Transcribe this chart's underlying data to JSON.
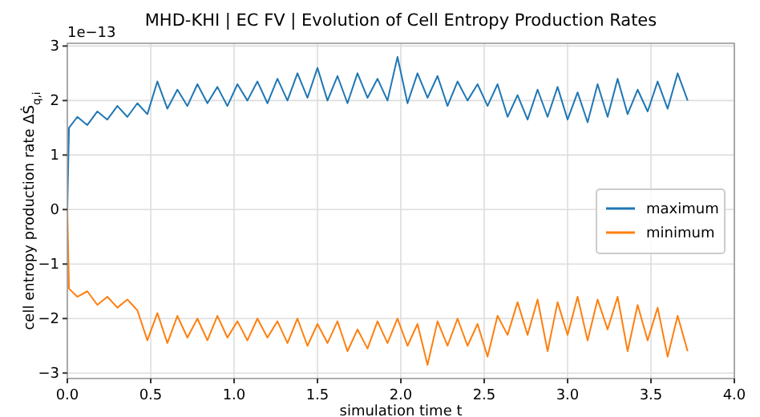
{
  "chart_data": {
    "type": "line",
    "title": "MHD-KHI | EC FV | Evolution of Cell Entropy Production Rates",
    "xlabel": "simulation time t",
    "ylabel": "cell entropy production rate ΔṠ$_{q,i}$",
    "annotations": [
      "1e−13"
    ],
    "x": [
      0,
      0.01,
      0.06,
      0.12,
      0.18,
      0.24,
      0.3,
      0.36,
      0.42,
      0.48,
      0.54,
      0.6,
      0.66,
      0.72,
      0.78,
      0.84,
      0.9,
      0.96,
      1.02,
      1.08,
      1.14,
      1.2,
      1.26,
      1.32,
      1.38,
      1.44,
      1.5,
      1.56,
      1.62,
      1.68,
      1.74,
      1.8,
      1.86,
      1.92,
      1.98,
      2.04,
      2.1,
      2.16,
      2.22,
      2.28,
      2.34,
      2.4,
      2.46,
      2.52,
      2.58,
      2.64,
      2.7,
      2.76,
      2.82,
      2.88,
      2.94,
      3.0,
      3.06,
      3.12,
      3.18,
      3.24,
      3.3,
      3.36,
      3.42,
      3.48,
      3.54,
      3.6,
      3.66,
      3.72
    ],
    "series": [
      {
        "name": "maximum",
        "color": "#1f77b4",
        "values": [
          0,
          1.5,
          1.7,
          1.55,
          1.8,
          1.65,
          1.9,
          1.7,
          1.95,
          1.75,
          2.35,
          1.85,
          2.2,
          1.9,
          2.3,
          1.95,
          2.25,
          1.9,
          2.3,
          2.0,
          2.35,
          1.95,
          2.4,
          2.0,
          2.5,
          2.05,
          2.6,
          2.0,
          2.45,
          1.95,
          2.5,
          2.05,
          2.4,
          2.0,
          2.8,
          1.95,
          2.5,
          2.05,
          2.45,
          1.9,
          2.35,
          2.0,
          2.3,
          1.9,
          2.3,
          1.7,
          2.1,
          1.65,
          2.2,
          1.7,
          2.25,
          1.65,
          2.15,
          1.6,
          2.3,
          1.7,
          2.4,
          1.75,
          2.2,
          1.8,
          2.35,
          1.85,
          2.5,
          2.0
        ]
      },
      {
        "name": "minimum",
        "color": "#ff7f0e",
        "values": [
          0,
          -1.45,
          -1.6,
          -1.5,
          -1.75,
          -1.6,
          -1.8,
          -1.65,
          -1.85,
          -2.4,
          -1.9,
          -2.45,
          -1.95,
          -2.35,
          -2.0,
          -2.4,
          -1.95,
          -2.35,
          -2.05,
          -2.4,
          -2.0,
          -2.35,
          -2.05,
          -2.45,
          -2.0,
          -2.5,
          -2.1,
          -2.45,
          -2.05,
          -2.6,
          -2.2,
          -2.55,
          -2.05,
          -2.45,
          -2.0,
          -2.5,
          -2.1,
          -2.85,
          -2.05,
          -2.5,
          -2.0,
          -2.5,
          -2.1,
          -2.7,
          -1.95,
          -2.3,
          -1.7,
          -2.3,
          -1.65,
          -2.6,
          -1.7,
          -2.3,
          -1.6,
          -2.4,
          -1.65,
          -2.2,
          -1.6,
          -2.6,
          -1.75,
          -2.4,
          -1.8,
          -2.7,
          -1.95,
          -2.6
        ]
      }
    ],
    "xlim": [
      0,
      4
    ],
    "xticks": [
      {
        "value": 0,
        "label": "0.0"
      },
      {
        "value": 0.5,
        "label": "0.5"
      },
      {
        "value": 1,
        "label": "1.0"
      },
      {
        "value": 1.5,
        "label": "1.5"
      },
      {
        "value": 2,
        "label": "2.0"
      },
      {
        "value": 2.5,
        "label": "2.5"
      },
      {
        "value": 3,
        "label": "3.0"
      },
      {
        "value": 3.5,
        "label": "3.5"
      },
      {
        "value": 4,
        "label": "4.0"
      }
    ],
    "ylim": [
      -3.1,
      3.05
    ],
    "yticks": [
      {
        "value": -3,
        "label": "−3"
      },
      {
        "value": -2,
        "label": "−2"
      },
      {
        "value": -1,
        "label": "−1"
      },
      0,
      1,
      2,
      3
    ],
    "grid": true,
    "legend": "right",
    "line_style": "solid",
    "marker": "none"
  }
}
